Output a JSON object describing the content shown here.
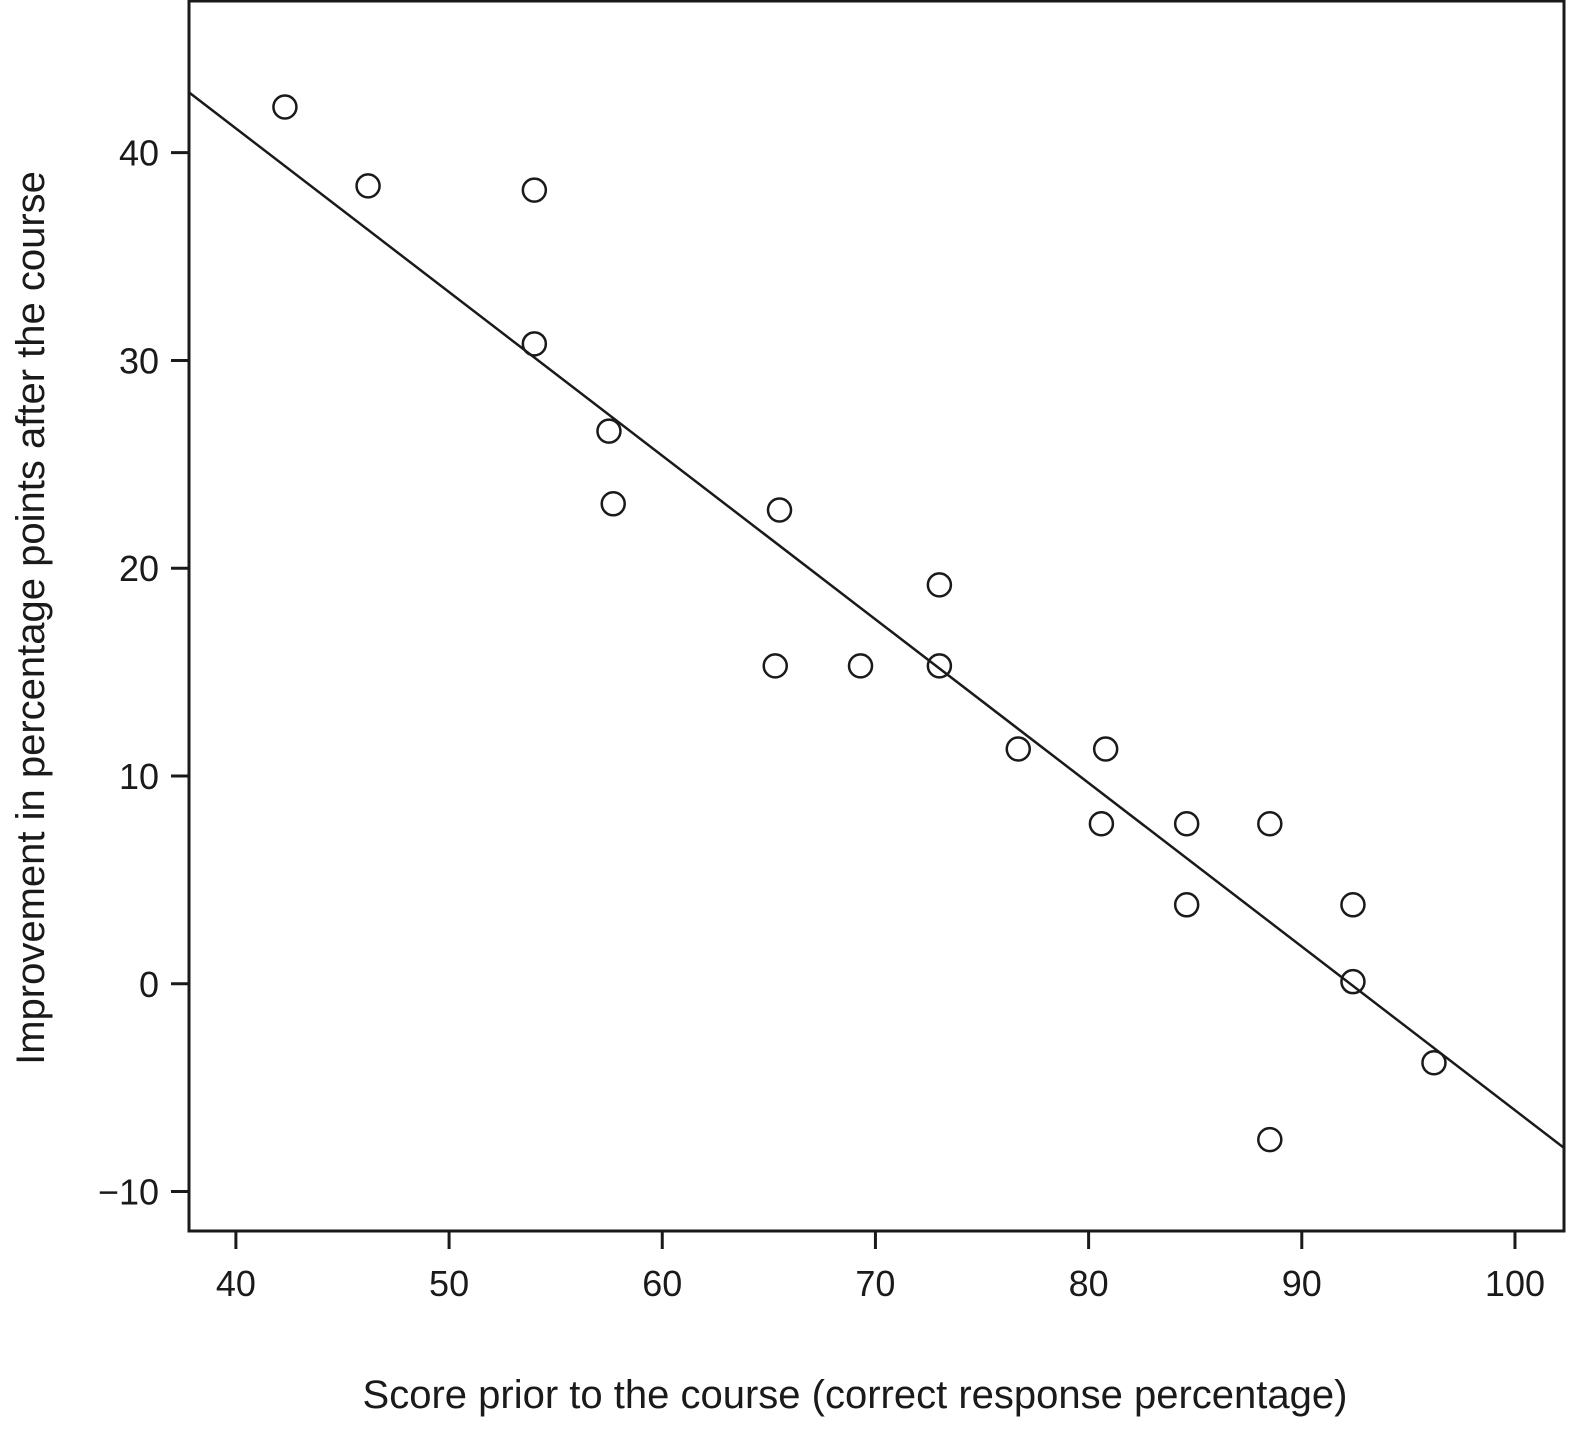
{
  "chart_data": {
    "type": "scatter",
    "xlabel": "Score prior to the course (correct response percentage)",
    "ylabel": "Improvement in percentage points after the course",
    "xlim": [
      37.8,
      102.3
    ],
    "ylim": [
      -11.9,
      47.3
    ],
    "x_ticks": [
      40,
      50,
      60,
      70,
      80,
      90,
      100
    ],
    "y_ticks": [
      -10,
      0,
      10,
      20,
      30,
      40
    ],
    "x_tick_labels": [
      "40",
      "50",
      "60",
      "70",
      "80",
      "90",
      "100"
    ],
    "y_tick_labels": [
      "−10",
      "0",
      "10",
      "20",
      "30",
      "40"
    ],
    "grid": false,
    "legend": "none",
    "marker": "open-circle",
    "color": "#1a1a1a",
    "points": [
      {
        "x": 42.3,
        "y": 42.2
      },
      {
        "x": 46.2,
        "y": 38.4
      },
      {
        "x": 54.0,
        "y": 38.2
      },
      {
        "x": 54.0,
        "y": 30.8
      },
      {
        "x": 57.5,
        "y": 26.6
      },
      {
        "x": 57.7,
        "y": 23.1
      },
      {
        "x": 65.5,
        "y": 22.8
      },
      {
        "x": 65.3,
        "y": 15.3
      },
      {
        "x": 69.3,
        "y": 15.3
      },
      {
        "x": 73.0,
        "y": 19.2
      },
      {
        "x": 73.0,
        "y": 15.3
      },
      {
        "x": 76.7,
        "y": 11.3
      },
      {
        "x": 80.8,
        "y": 11.3
      },
      {
        "x": 80.6,
        "y": 7.7
      },
      {
        "x": 84.6,
        "y": 7.7
      },
      {
        "x": 84.6,
        "y": 3.8
      },
      {
        "x": 88.5,
        "y": 7.7
      },
      {
        "x": 88.5,
        "y": -7.5
      },
      {
        "x": 92.4,
        "y": 3.8
      },
      {
        "x": 92.4,
        "y": 0.1
      },
      {
        "x": 96.2,
        "y": -3.8
      }
    ],
    "fit_line": {
      "x": [
        37.8,
        102.3
      ],
      "y": [
        42.9,
        -7.9
      ]
    }
  }
}
